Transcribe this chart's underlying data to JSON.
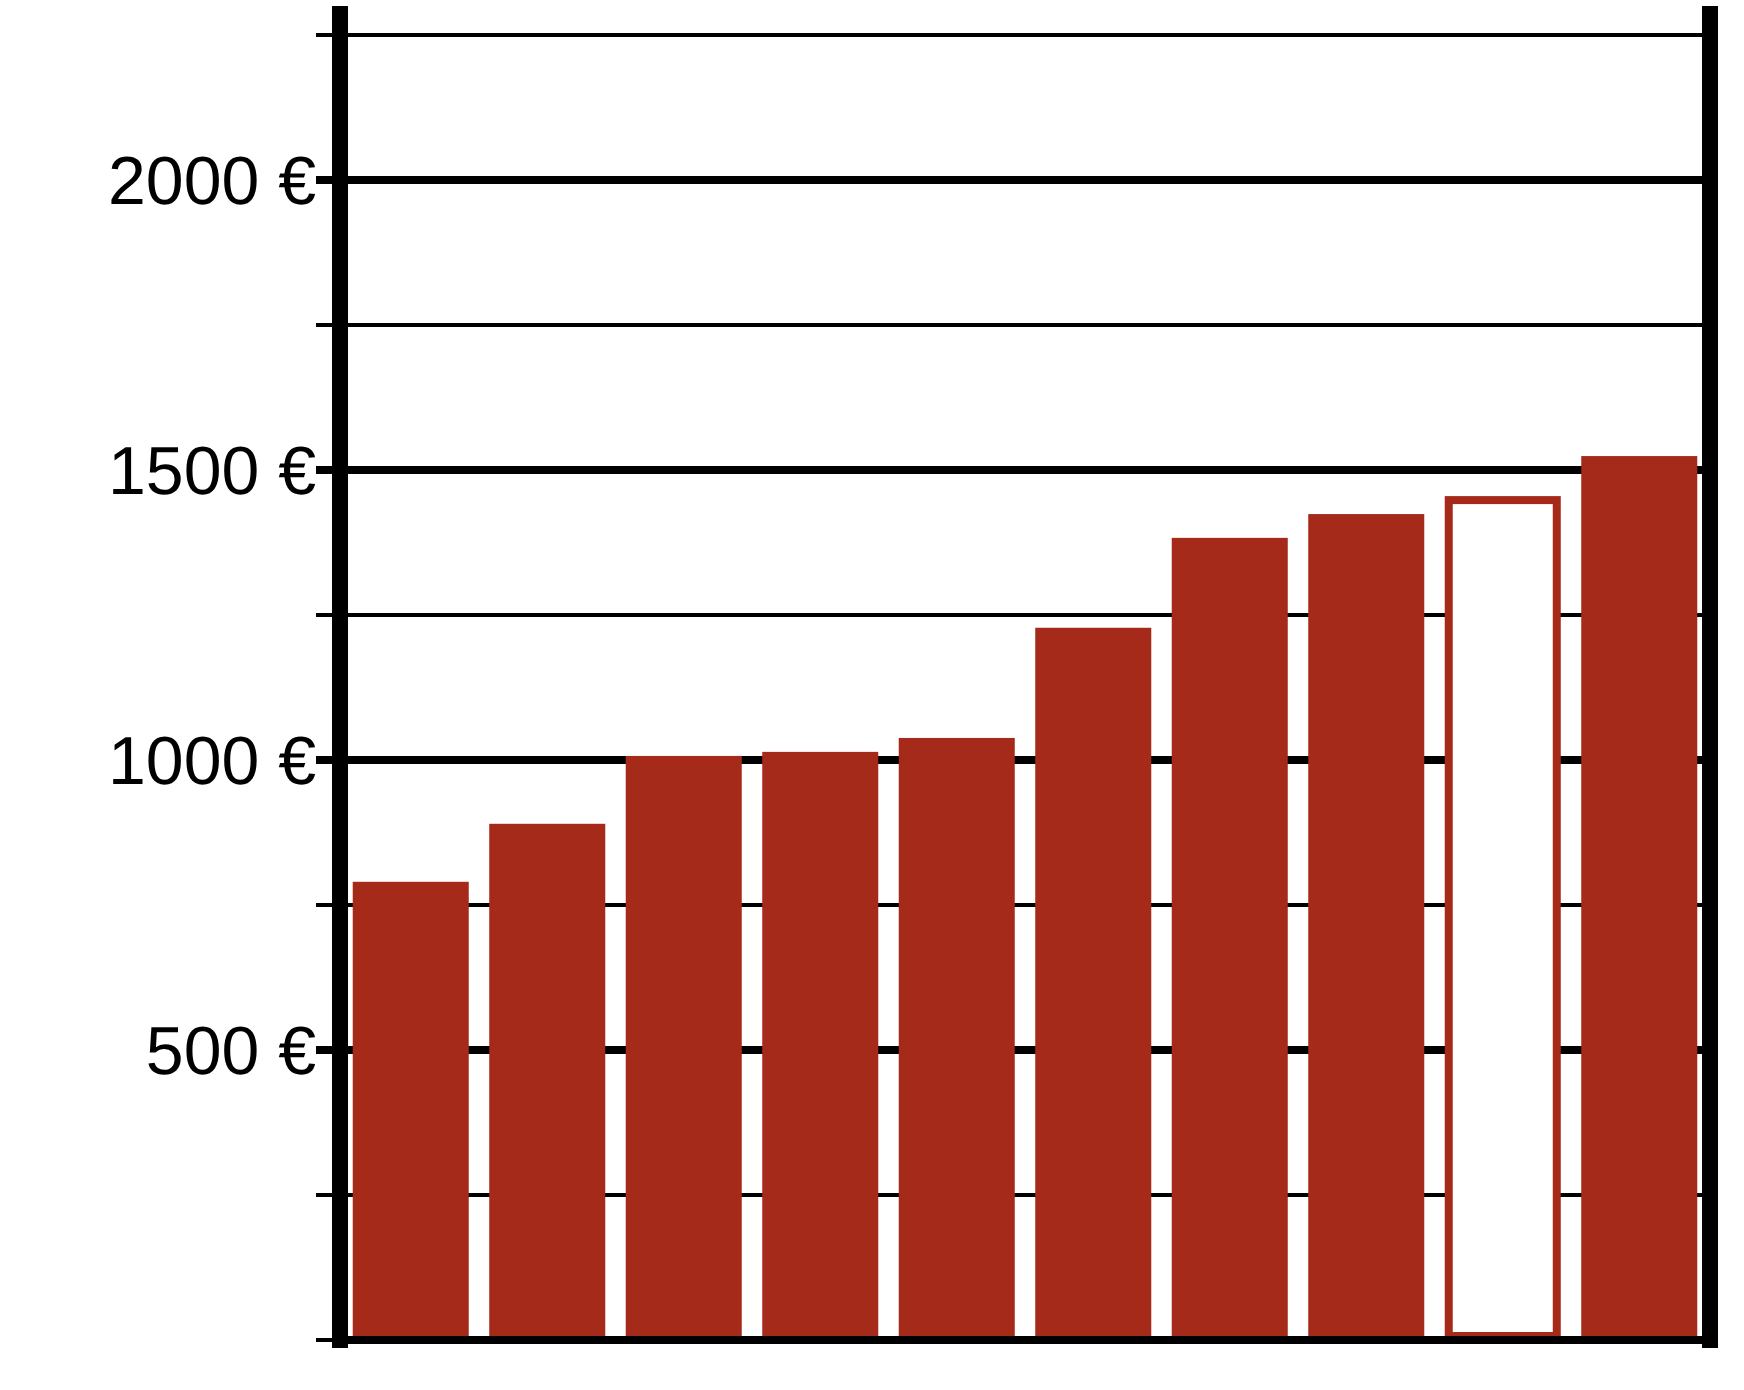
{
  "chart_data": {
    "type": "bar",
    "categories": [
      null,
      null,
      null,
      null,
      null,
      null,
      null,
      null,
      null,
      null
    ],
    "values": [
      790,
      890,
      1007,
      1014,
      1038,
      1228,
      1383,
      1424,
      1455,
      1524
    ],
    "color": "#a52a1a",
    "colors": [
      "#a52a1a",
      "#a52a1a",
      "#a52a1a",
      "#a52a1a",
      "#a52a1a",
      "#a52a1a",
      "#a52a1a",
      "#a52a1a",
      "#ffffff",
      "#a52a1a"
    ],
    "ylim": [
      0,
      2300
    ],
    "yticks": [
      {
        "value": 0,
        "label": null
      },
      {
        "value": 250,
        "label": null
      },
      {
        "value": 500,
        "label": "500 €"
      },
      {
        "value": 750,
        "label": null
      },
      {
        "value": 1000,
        "label": "1000 €"
      },
      {
        "value": 1250,
        "label": null
      },
      {
        "value": 1500,
        "label": "1500 €"
      },
      {
        "value": 1750,
        "label": null
      },
      {
        "value": 2000,
        "label": "2000 €"
      },
      {
        "value": 2250,
        "label": null
      }
    ],
    "grid": true
  }
}
